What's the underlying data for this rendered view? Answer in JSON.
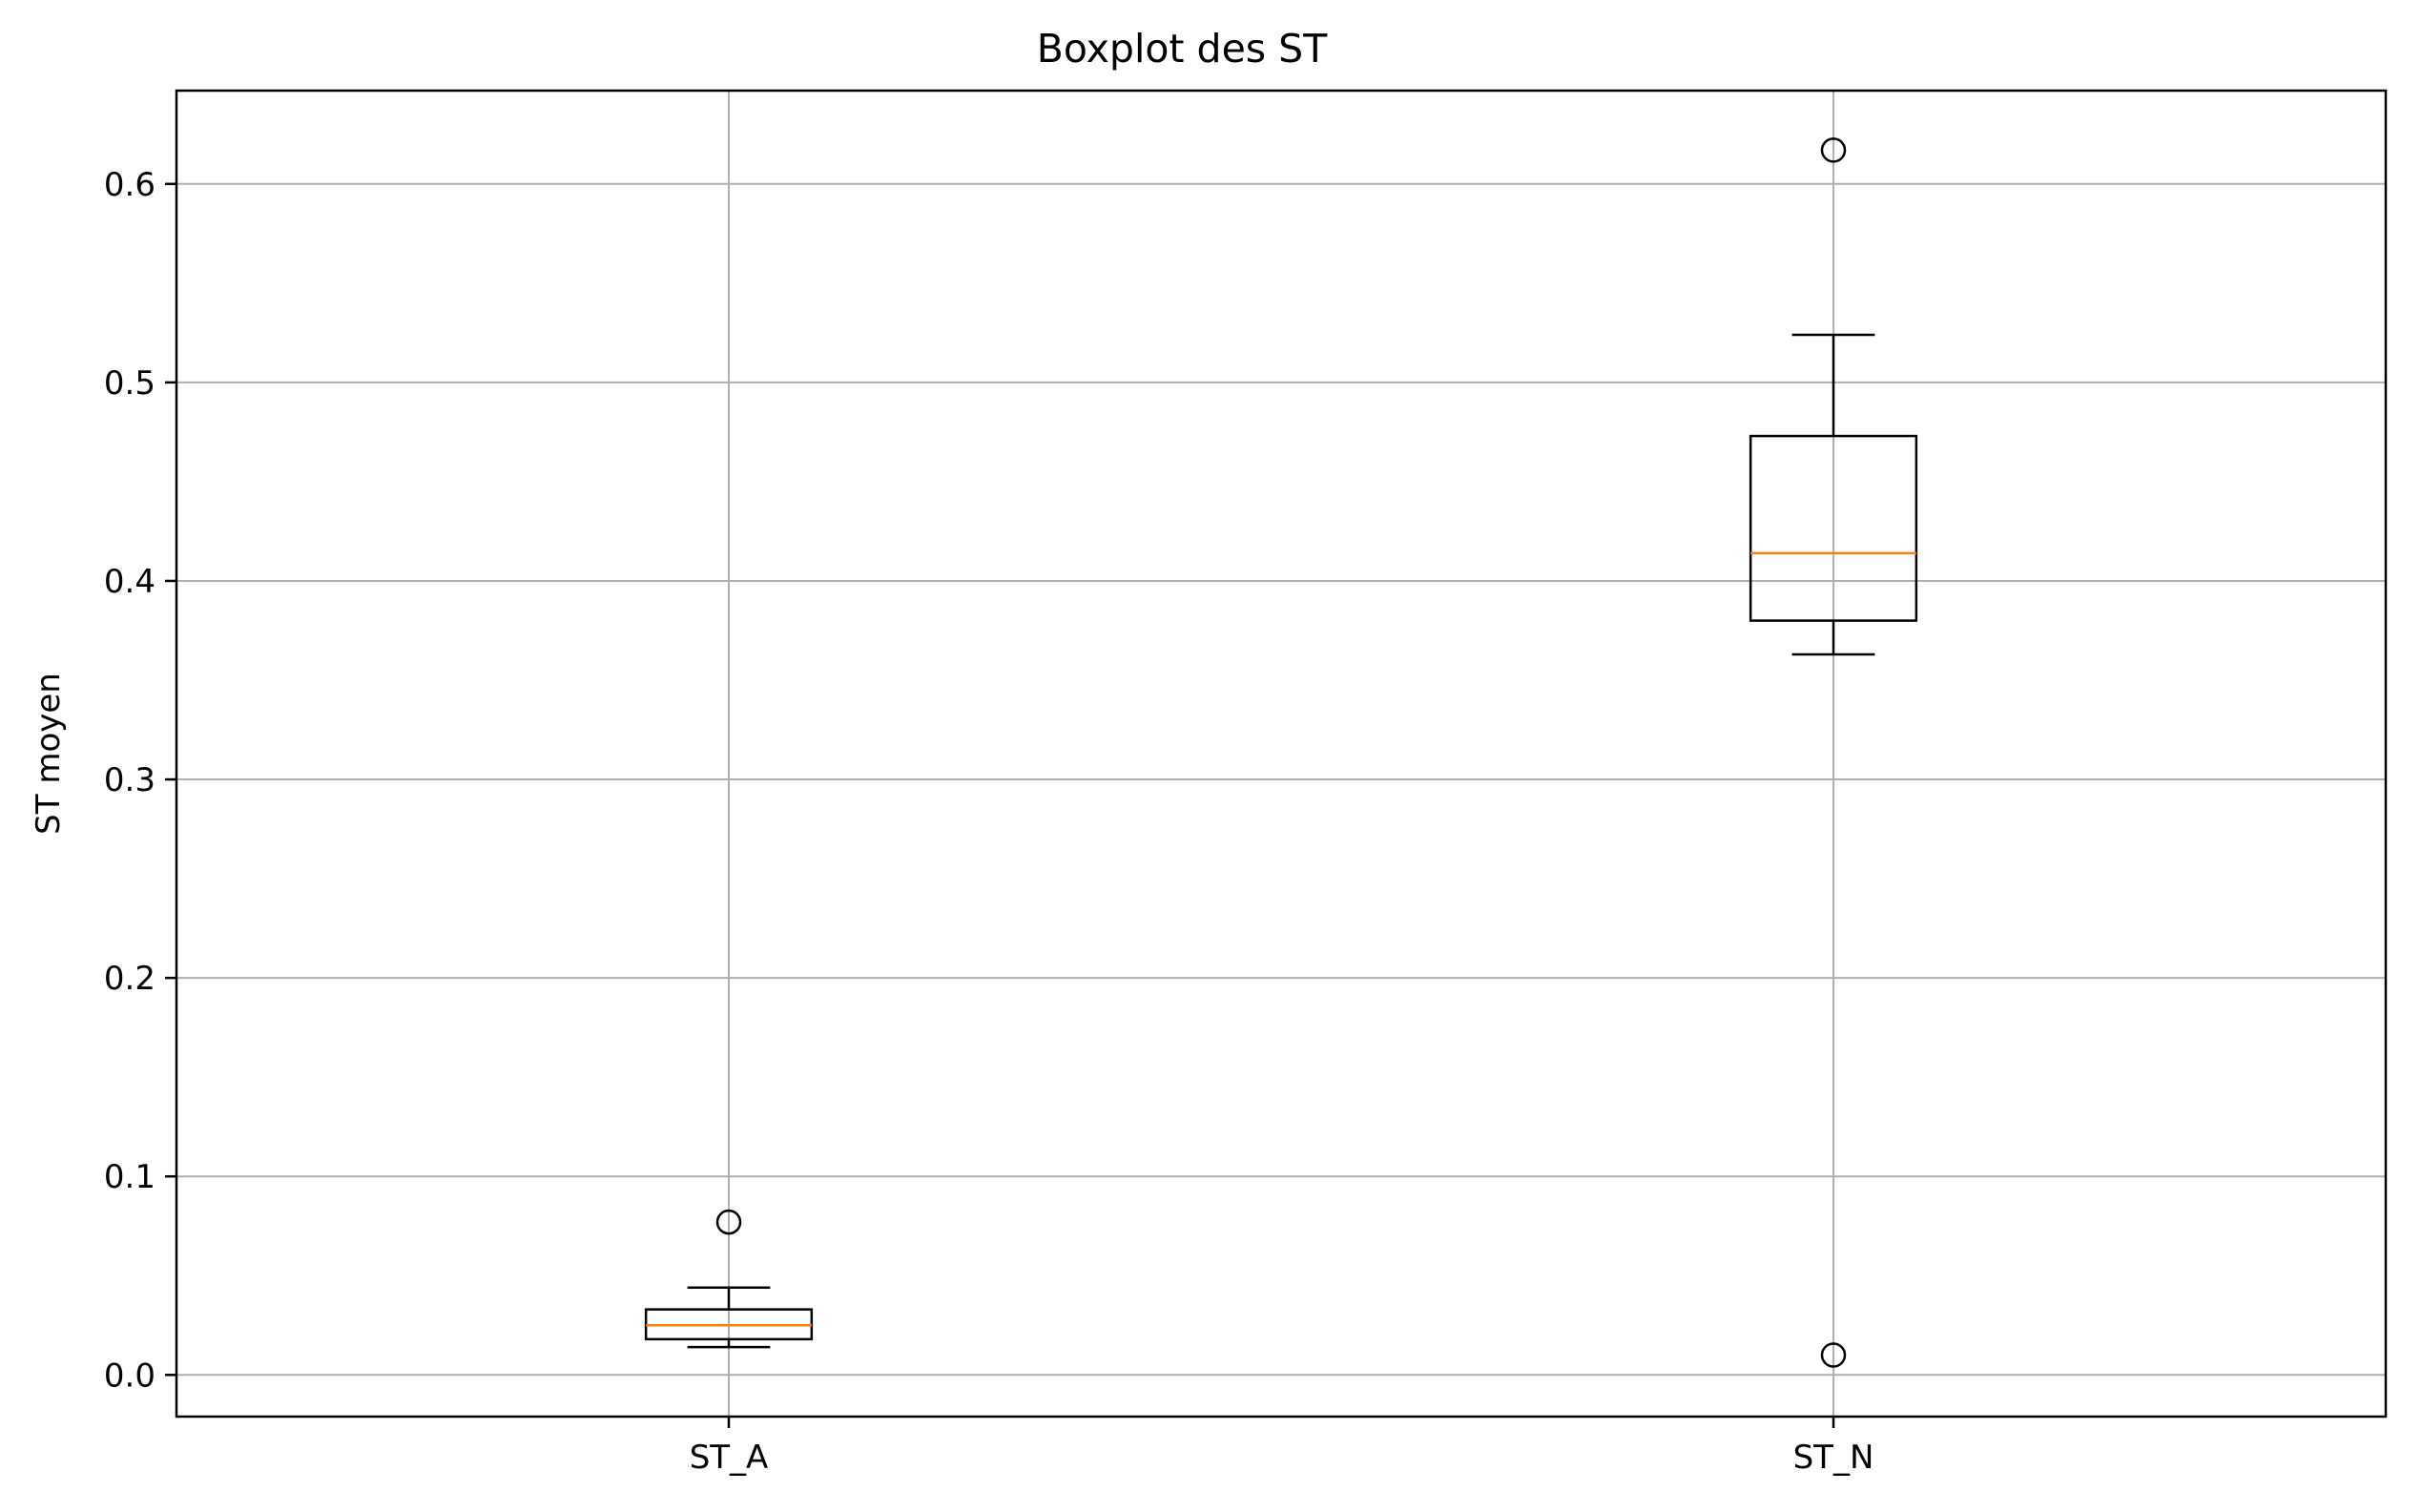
{
  "chart_data": {
    "type": "boxplot",
    "title": "Boxplot des ST",
    "xlabel": "",
    "ylabel": "ST moyen",
    "ylim": [
      -0.021,
      0.647
    ],
    "yticks": [
      0.0,
      0.1,
      0.2,
      0.3,
      0.4,
      0.5,
      0.6
    ],
    "ytick_labels": [
      "0.0",
      "0.1",
      "0.2",
      "0.3",
      "0.4",
      "0.5",
      "0.6"
    ],
    "grid": true,
    "categories": [
      "ST_A",
      "ST_N"
    ],
    "boxes": [
      {
        "category": "ST_A",
        "whisker_low": 0.014,
        "q1": 0.018,
        "median": 0.025,
        "q3": 0.033,
        "whisker_high": 0.044,
        "outliers": [
          0.077
        ]
      },
      {
        "category": "ST_N",
        "whisker_low": 0.363,
        "q1": 0.38,
        "median": 0.414,
        "q3": 0.473,
        "whisker_high": 0.524,
        "outliers": [
          0.617,
          0.01
        ]
      }
    ],
    "colors": {
      "box": "#000000",
      "median": "#ff7f0e",
      "grid": "#b0b0b0",
      "background": "#ffffff"
    }
  }
}
